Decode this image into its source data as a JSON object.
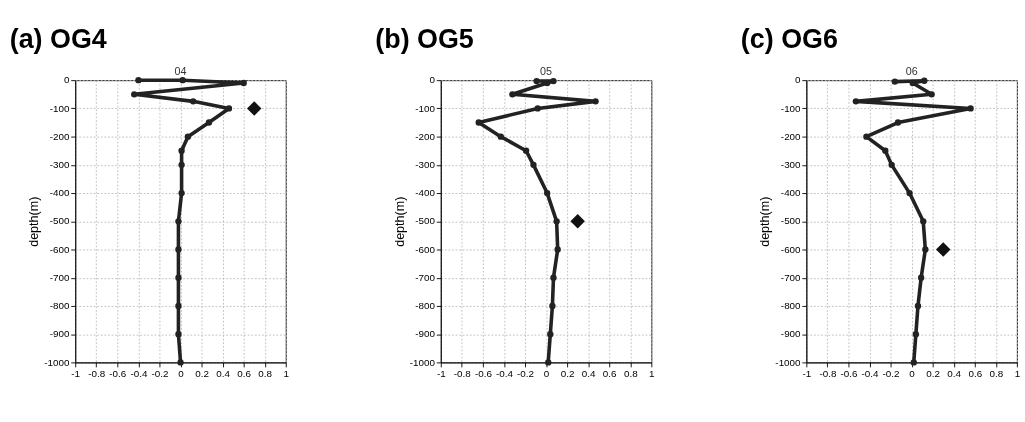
{
  "chart_data": [
    {
      "type": "line",
      "title": "(a) OG4",
      "subtitle": "04",
      "ylabel": "depth(m)",
      "xlim": [
        -1,
        1
      ],
      "xticks": [
        -1,
        -0.8,
        -0.6,
        -0.4,
        -0.2,
        0,
        0.2,
        0.4,
        0.6,
        0.8,
        1
      ],
      "ylim": [
        -1000,
        0
      ],
      "yticks": [
        -1000,
        -900,
        -800,
        -700,
        -600,
        -500,
        -400,
        -300,
        -200,
        -100,
        0
      ],
      "grid": true,
      "marker": "circle",
      "line_style": "solid",
      "series": [
        {
          "color": "#222222",
          "x": [
            -0.4,
            0.02,
            0.6,
            -0.44,
            0.12,
            0.46,
            0.27,
            0.07,
            0.01,
            0.01,
            0.01,
            -0.02,
            -0.02,
            -0.02,
            -0.02,
            -0.02,
            0.0
          ],
          "values": [
            0,
            0,
            -10,
            -50,
            -75,
            -100,
            -150,
            -200,
            -250,
            -300,
            -400,
            -500,
            -600,
            -700,
            -800,
            -900,
            -1000
          ]
        },
        {
          "type": "scatter",
          "marker": "diamond",
          "color": "#111111",
          "x": [
            0.7
          ],
          "values": [
            -100
          ]
        }
      ]
    },
    {
      "type": "line",
      "title": "(b) OG5",
      "subtitle": "05",
      "ylabel": "depth(m)",
      "xlim": [
        -1,
        1
      ],
      "xticks": [
        -1,
        -0.8,
        -0.6,
        -0.4,
        -0.2,
        0,
        0.2,
        0.4,
        0.6,
        0.8,
        1
      ],
      "ylim": [
        -1000,
        0
      ],
      "yticks": [
        -1000,
        -900,
        -800,
        -700,
        -600,
        -500,
        -400,
        -300,
        -200,
        -100,
        0
      ],
      "grid": true,
      "marker": "circle",
      "line_style": "solid",
      "series": [
        {
          "color": "#222222",
          "x": [
            -0.09,
            0.07,
            0.01,
            -0.32,
            0.47,
            -0.08,
            -0.64,
            -0.43,
            -0.19,
            -0.12,
            0.01,
            0.1,
            0.11,
            0.07,
            0.06,
            0.04,
            0.02
          ],
          "values": [
            -3,
            -3,
            -10,
            -50,
            -75,
            -100,
            -150,
            -200,
            -250,
            -300,
            -400,
            -500,
            -600,
            -700,
            -800,
            -900,
            -1000
          ]
        },
        {
          "type": "scatter",
          "marker": "diamond",
          "color": "#111111",
          "x": [
            0.3
          ],
          "values": [
            -500
          ]
        }
      ]
    },
    {
      "type": "line",
      "title": "(c) OG6",
      "subtitle": "06",
      "ylabel": "depth(m)",
      "xlim": [
        -1,
        1
      ],
      "xticks": [
        -1,
        -0.8,
        -0.6,
        -0.4,
        -0.2,
        0,
        0.2,
        0.4,
        0.6,
        0.8,
        1
      ],
      "ylim": [
        -1000,
        0
      ],
      "yticks": [
        -1000,
        -900,
        -800,
        -700,
        -600,
        -500,
        -400,
        -300,
        -200,
        -100,
        0
      ],
      "grid": true,
      "marker": "circle",
      "line_style": "solid",
      "series": [
        {
          "color": "#222222",
          "x": [
            -0.16,
            0.12,
            0.01,
            0.19,
            -0.53,
            0.56,
            -0.13,
            -0.43,
            -0.25,
            -0.19,
            -0.02,
            0.11,
            0.13,
            0.09,
            0.06,
            0.04,
            0.02
          ],
          "values": [
            -5,
            -2,
            -10,
            -50,
            -75,
            -100,
            -150,
            -200,
            -250,
            -300,
            -400,
            -500,
            -600,
            -700,
            -800,
            -900,
            -1000
          ]
        },
        {
          "type": "scatter",
          "marker": "diamond",
          "color": "#111111",
          "x": [
            0.3
          ],
          "values": [
            -600
          ]
        }
      ]
    }
  ]
}
